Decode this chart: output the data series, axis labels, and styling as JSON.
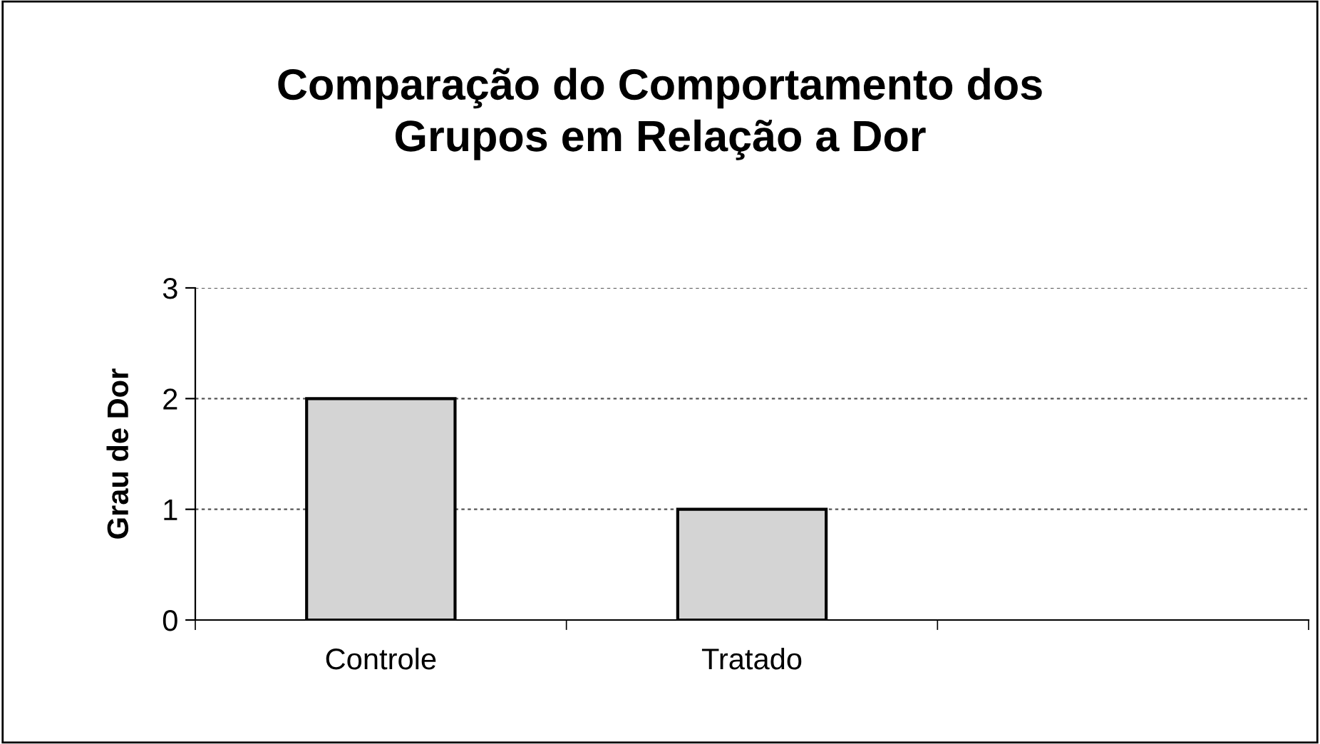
{
  "chart_data": {
    "type": "bar",
    "title": "Comparação do Comportamento dos\nGrupos em Relação a Dor",
    "ylabel": "Grau de Dor",
    "categories": [
      "Controle",
      "Tratado",
      null
    ],
    "values": [
      2,
      1,
      null
    ],
    "color": "#d4d4d4",
    "ylim": [
      0,
      3
    ],
    "yticks": [
      0,
      1,
      2,
      3
    ],
    "grid": "y"
  }
}
